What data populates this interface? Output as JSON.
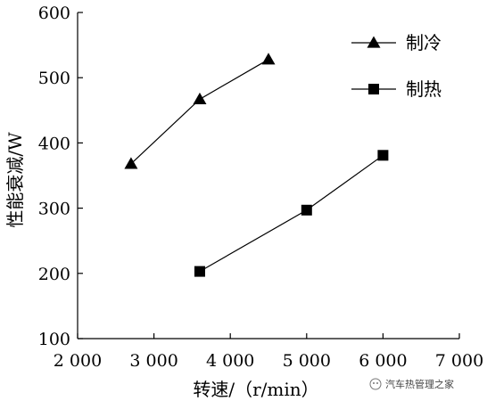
{
  "chart_data": {
    "type": "line",
    "xlabel": "转速/（r/min）",
    "ylabel": "性能衰减/W",
    "xlim": [
      2000,
      7000
    ],
    "ylim": [
      100,
      600
    ],
    "x_ticks": [
      2000,
      3000,
      4000,
      5000,
      6000,
      7000
    ],
    "x_tick_labels": [
      "2 000",
      "3 000",
      "4 000",
      "5 000",
      "6 000",
      "7 000"
    ],
    "y_ticks": [
      100,
      200,
      300,
      400,
      500,
      600
    ],
    "y_tick_labels": [
      "100",
      "200",
      "300",
      "400",
      "500",
      "600"
    ],
    "grid": false,
    "legend_position": "top-right",
    "series": [
      {
        "name": "制冷",
        "marker": "triangle",
        "color": "#000000",
        "x": [
          2700,
          3600,
          4500
        ],
        "values": [
          368,
          467,
          528
        ]
      },
      {
        "name": "制热",
        "marker": "square",
        "color": "#000000",
        "x": [
          3600,
          5000,
          6000
        ],
        "values": [
          203,
          297,
          381
        ]
      }
    ]
  },
  "watermark": {
    "text": "汽车热管理之家",
    "icon": "wechat-icon"
  }
}
